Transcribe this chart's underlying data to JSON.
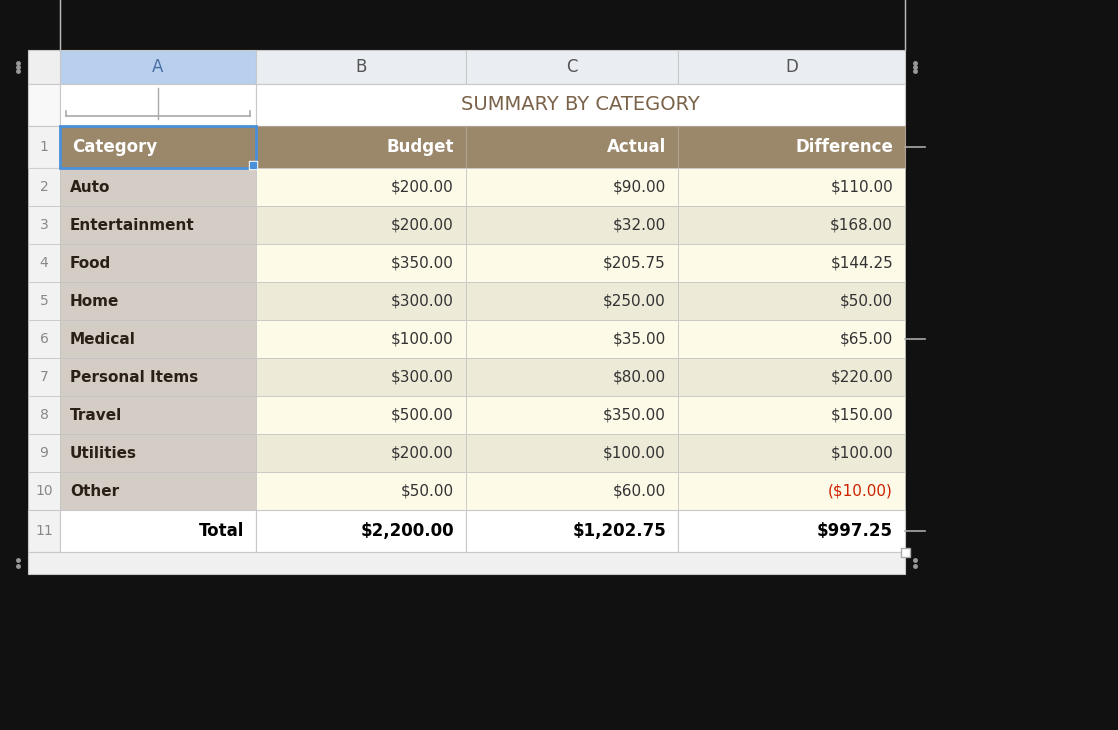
{
  "title": "SUMMARY BY CATEGORY",
  "col_headers": [
    "A",
    "B",
    "C",
    "D"
  ],
  "header_row": [
    "Category",
    "Budget",
    "Actual",
    "Difference"
  ],
  "body_rows": [
    [
      "Auto",
      "$200.00",
      "$90.00",
      "$110.00"
    ],
    [
      "Entertainment",
      "$200.00",
      "$32.00",
      "$168.00"
    ],
    [
      "Food",
      "$350.00",
      "$205.75",
      "$144.25"
    ],
    [
      "Home",
      "$300.00",
      "$250.00",
      "$50.00"
    ],
    [
      "Medical",
      "$100.00",
      "$35.00",
      "$65.00"
    ],
    [
      "Personal Items",
      "$300.00",
      "$80.00",
      "$220.00"
    ],
    [
      "Travel",
      "$500.00",
      "$350.00",
      "$150.00"
    ],
    [
      "Utilities",
      "$200.00",
      "$100.00",
      "$100.00"
    ],
    [
      "Other",
      "$50.00",
      "$60.00",
      "($10.00)"
    ]
  ],
  "footer_row": [
    "Total",
    "$2,200.00",
    "$1,202.75",
    "$997.25"
  ],
  "col_header_bg_A": "#b8d0ed",
  "col_header_bg_other": "#eaeef2",
  "col_header_text_A": "#4a6fa5",
  "col_header_text_other": "#555555",
  "table_header_bg": "#9b876a",
  "table_header_text": "#ffffff",
  "body_col_A_bg": "#d4cdc5",
  "body_col_BCD_odd_bg": "#fdfae8",
  "body_col_BCD_even_bg": "#eeead8",
  "footer_bg": "#ffffff",
  "negative_color": "#cc2200",
  "body_text_color": "#2a2018",
  "footer_text_color": "#000000",
  "grid_color": "#c8c8c8",
  "row_num_bg": "#f2f2f2",
  "row_num_border": "#cccccc",
  "row_num_text": "#888888",
  "handle_dot_color": "#999999",
  "handle_line_color": "#aaaaaa",
  "bg_color": "#111111",
  "title_color": "#7a6248",
  "title_row_bg": "#f8f8f8",
  "col_hdr_row_bg": "#efefef",
  "bottom_bar_bg": "#f0f0f0",
  "resize_handle_color": "#aaaaaa",
  "selected_border_color": "#4a90d9",
  "selected_dot_color": "#ffffff"
}
